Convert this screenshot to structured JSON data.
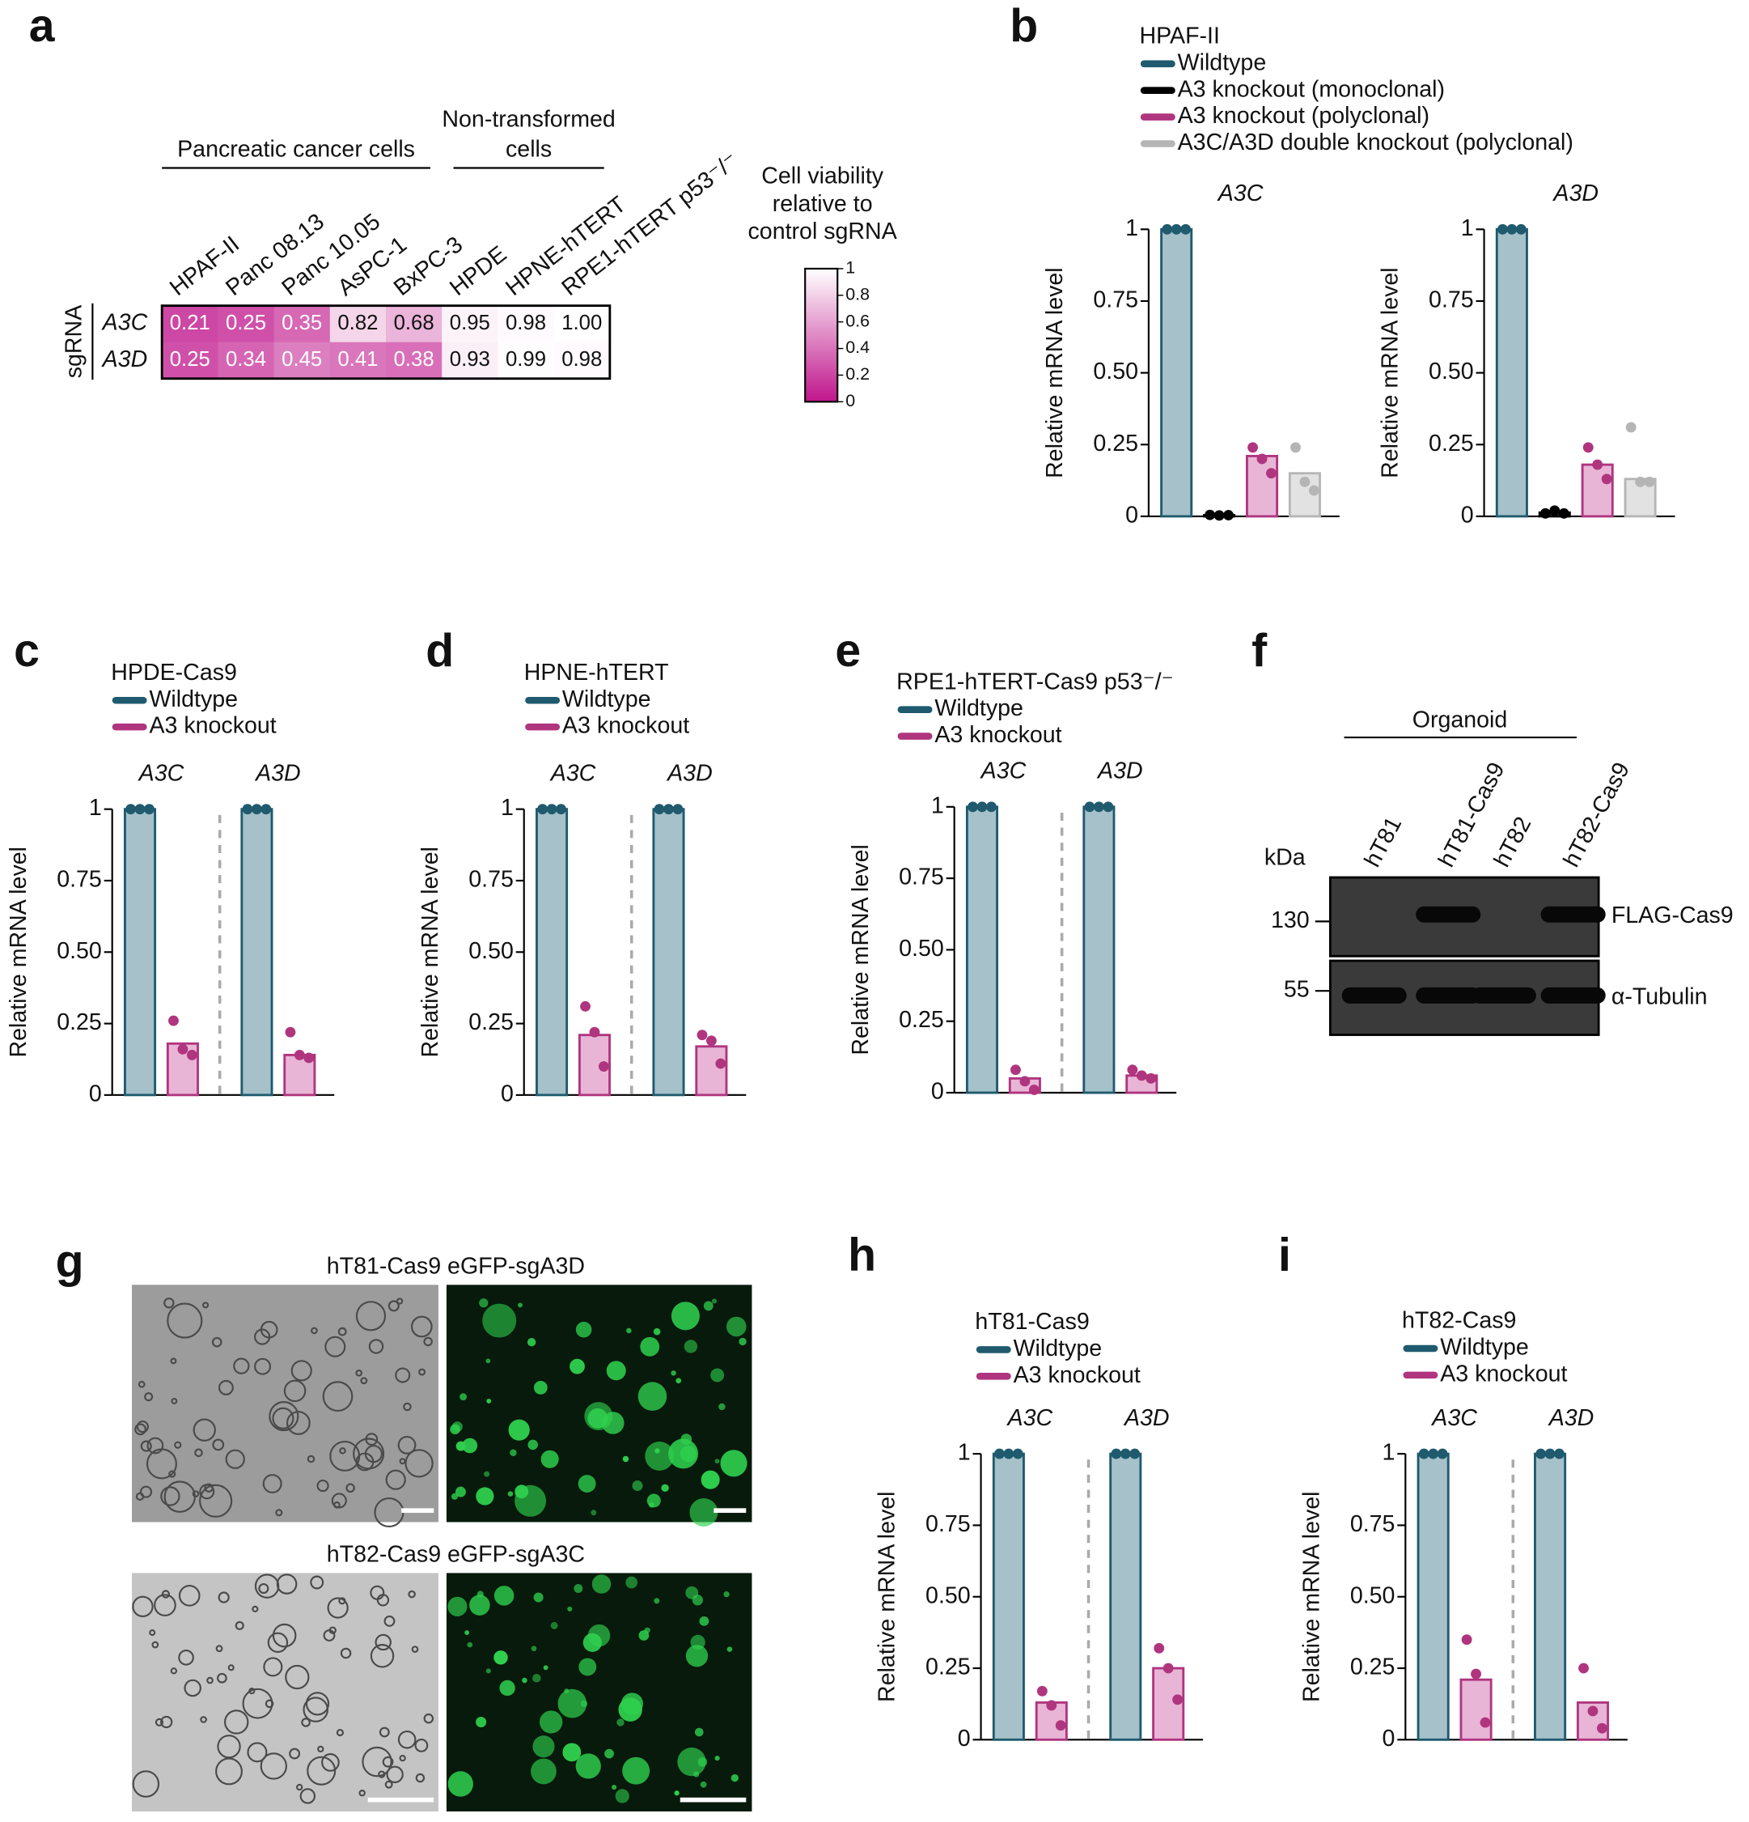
{
  "chart_data": [
    {
      "type": "heatmap",
      "panel": "a",
      "row_title": "sgRNA",
      "column_groups": [
        {
          "label_lines": [
            "Pancreatic cancer cells"
          ],
          "x": [
            "HPAF-II",
            "Panc 08.13",
            "Panc 10.05",
            "AsPC-1",
            "BxPC-3"
          ]
        },
        {
          "label_lines": [
            "Non-transformed",
            "cells"
          ],
          "x": [
            "HPDE",
            "HPNE-hTERT",
            "RPE1-hTERT p53⁻/⁻"
          ]
        }
      ],
      "y": [
        "A3C",
        "A3D"
      ],
      "z": [
        [
          0.21,
          0.25,
          0.35,
          0.82,
          0.68,
          0.95,
          0.98,
          1.0
        ],
        [
          0.25,
          0.34,
          0.45,
          0.41,
          0.38,
          0.93,
          0.99,
          0.98
        ]
      ],
      "value_labels": [
        [
          "0.21",
          "0.25",
          "0.35",
          "0.82",
          "0.68",
          "0.95",
          "0.98",
          "1.00"
        ],
        [
          "0.25",
          "0.34",
          "0.45",
          "0.41",
          "0.38",
          "0.93",
          "0.99",
          "0.98"
        ]
      ],
      "colors": [
        "#c0168c",
        "#ffffff"
      ],
      "colorbar": {
        "title_lines": [
          "Cell viability",
          "relative to",
          "control sgRNA"
        ],
        "lim": [
          0,
          1
        ],
        "ticks": [
          0,
          0.2,
          0.4,
          0.6,
          0.8,
          1
        ]
      }
    },
    {
      "type": "bar",
      "panel": "b",
      "legend_title": "HPAF-II",
      "separate_axes": true,
      "categories": [
        "A3C",
        "A3D"
      ],
      "ylabel": "Relative mRNA level",
      "ylim": [
        0,
        1
      ],
      "yticks": [
        0,
        0.25,
        {
          "value": 0.5,
          "label": "0.50"
        },
        0.75,
        1
      ],
      "series": [
        {
          "name": "Wildtype",
          "color": "#1f5a6e",
          "fill": "#a6c1ca",
          "values": [
            1,
            1
          ],
          "replicates": [
            [
              1,
              1,
              1
            ],
            [
              1,
              1,
              1
            ]
          ]
        },
        {
          "name": "A3 knockout (monoclonal)",
          "color": "#000000",
          "fill": "#555555",
          "values": [
            0.004,
            0.013
          ],
          "replicates": [
            [
              0.005,
              0.003,
              0.004
            ],
            [
              0.01,
              0.02,
              0.01
            ]
          ]
        },
        {
          "name": "A3 knockout (polyclonal)",
          "color": "#b0357f",
          "fill": "#e8b5d6",
          "values": [
            0.21,
            0.18
          ],
          "replicates": [
            [
              0.24,
              0.2,
              0.15
            ],
            [
              0.24,
              0.18,
              0.13
            ]
          ]
        },
        {
          "name": "A3C/A3D double knockout (polyclonal)",
          "color": "#b5b5b5",
          "fill": "#e2e2e2",
          "values": [
            0.15,
            0.13
          ],
          "replicates": [
            [
              0.24,
              0.12,
              0.09
            ],
            [
              0.31,
              0.12,
              0.12
            ]
          ]
        }
      ]
    },
    {
      "type": "bar",
      "panel": "c",
      "legend_title": "HPDE-Cas9",
      "separate_axes": false,
      "categories": [
        "A3C",
        "A3D"
      ],
      "ylabel": "Relative mRNA level",
      "ylim": [
        0,
        1
      ],
      "yticks": [
        0,
        0.25,
        {
          "value": 0.5,
          "label": "0.50"
        },
        0.75,
        1
      ],
      "series": [
        {
          "name": "Wildtype",
          "color": "#1f5a6e",
          "fill": "#a6c1ca",
          "values": [
            1,
            1
          ],
          "replicates": [
            [
              1,
              1,
              1
            ],
            [
              1,
              1,
              1
            ]
          ]
        },
        {
          "name": "A3 knockout",
          "color": "#b0357f",
          "fill": "#e8b5d6",
          "values": [
            0.18,
            0.14
          ],
          "replicates": [
            [
              0.26,
              0.16,
              0.14
            ],
            [
              0.22,
              0.14,
              0.13
            ]
          ]
        }
      ]
    },
    {
      "type": "bar",
      "panel": "d",
      "legend_title": "HPNE-hTERT",
      "separate_axes": false,
      "categories": [
        "A3C",
        "A3D"
      ],
      "ylabel": "Relative mRNA level",
      "ylim": [
        0,
        1
      ],
      "yticks": [
        0,
        0.25,
        {
          "value": 0.5,
          "label": "0.50"
        },
        0.75,
        1
      ],
      "series": [
        {
          "name": "Wildtype",
          "color": "#1f5a6e",
          "fill": "#a6c1ca",
          "values": [
            1,
            1
          ],
          "replicates": [
            [
              1,
              1,
              1
            ],
            [
              1,
              1,
              1
            ]
          ]
        },
        {
          "name": "A3 knockout",
          "color": "#b0357f",
          "fill": "#e8b5d6",
          "values": [
            0.21,
            0.17
          ],
          "replicates": [
            [
              0.31,
              0.22,
              0.1
            ],
            [
              0.21,
              0.19,
              0.11
            ]
          ]
        }
      ]
    },
    {
      "type": "bar",
      "panel": "e",
      "legend_title": "RPE1-hTERT-Cas9 p53⁻/⁻",
      "separate_axes": false,
      "categories": [
        "A3C",
        "A3D"
      ],
      "ylabel": "Relative mRNA level",
      "ylim": [
        0,
        1
      ],
      "yticks": [
        0,
        0.25,
        {
          "value": 0.5,
          "label": "0.50"
        },
        0.75,
        1
      ],
      "series": [
        {
          "name": "Wildtype",
          "color": "#1f5a6e",
          "fill": "#a6c1ca",
          "values": [
            1,
            1
          ],
          "replicates": [
            [
              1,
              1,
              1
            ],
            [
              1,
              1,
              1
            ]
          ]
        },
        {
          "name": "A3 knockout",
          "color": "#b0357f",
          "fill": "#e8b5d6",
          "values": [
            0.05,
            0.06
          ],
          "replicates": [
            [
              0.08,
              0.04,
              0.01
            ],
            [
              0.08,
              0.06,
              0.05
            ]
          ]
        }
      ]
    },
    {
      "type": "bar",
      "panel": "h",
      "legend_title": "hT81-Cas9",
      "separate_axes": false,
      "categories": [
        "A3C",
        "A3D"
      ],
      "ylabel": "Relative mRNA level",
      "ylim": [
        0,
        1
      ],
      "yticks": [
        0,
        0.25,
        {
          "value": 0.5,
          "label": "0.50"
        },
        0.75,
        1
      ],
      "series": [
        {
          "name": "Wildtype",
          "color": "#1f5a6e",
          "fill": "#a6c1ca",
          "values": [
            1,
            1
          ],
          "replicates": [
            [
              1,
              1,
              1
            ],
            [
              1,
              1,
              1
            ]
          ]
        },
        {
          "name": "A3 knockout",
          "color": "#b0357f",
          "fill": "#e8b5d6",
          "values": [
            0.13,
            0.25
          ],
          "replicates": [
            [
              0.17,
              0.12,
              0.05
            ],
            [
              0.32,
              0.25,
              0.14
            ]
          ]
        }
      ]
    },
    {
      "type": "bar",
      "panel": "i",
      "legend_title": "hT82-Cas9",
      "separate_axes": false,
      "categories": [
        "A3C",
        "A3D"
      ],
      "ylabel": "Relative mRNA level",
      "ylim": [
        0,
        1
      ],
      "yticks": [
        0,
        0.25,
        {
          "value": 0.5,
          "label": "0.50"
        },
        0.75,
        1
      ],
      "series": [
        {
          "name": "Wildtype",
          "color": "#1f5a6e",
          "fill": "#a6c1ca",
          "values": [
            1,
            1
          ],
          "replicates": [
            [
              1,
              1,
              1
            ],
            [
              1,
              1,
              1
            ]
          ]
        },
        {
          "name": "A3 knockout",
          "color": "#b0357f",
          "fill": "#e8b5d6",
          "values": [
            0.21,
            0.13
          ],
          "replicates": [
            [
              0.35,
              0.23,
              0.06
            ],
            [
              0.25,
              0.1,
              0.04
            ]
          ]
        }
      ]
    }
  ],
  "blot": {
    "panel": "f",
    "title": "Organoid",
    "unit": "kDa",
    "lanes": [
      "hT81",
      "hT81-Cas9",
      "hT82",
      "hT82-Cas9"
    ],
    "rows": [
      {
        "label": "FLAG-Cas9",
        "marker": 130,
        "present": [
          false,
          true,
          false,
          true
        ]
      },
      {
        "label": "α-Tubulin",
        "marker": 55,
        "present": [
          true,
          true,
          true,
          true
        ]
      }
    ]
  },
  "micrographs": {
    "panel": "g",
    "rows": [
      {
        "title": "hT81-Cas9 eGFP-sgA3D"
      },
      {
        "title": "hT82-Cas9 eGFP-sgA3C"
      }
    ]
  }
}
